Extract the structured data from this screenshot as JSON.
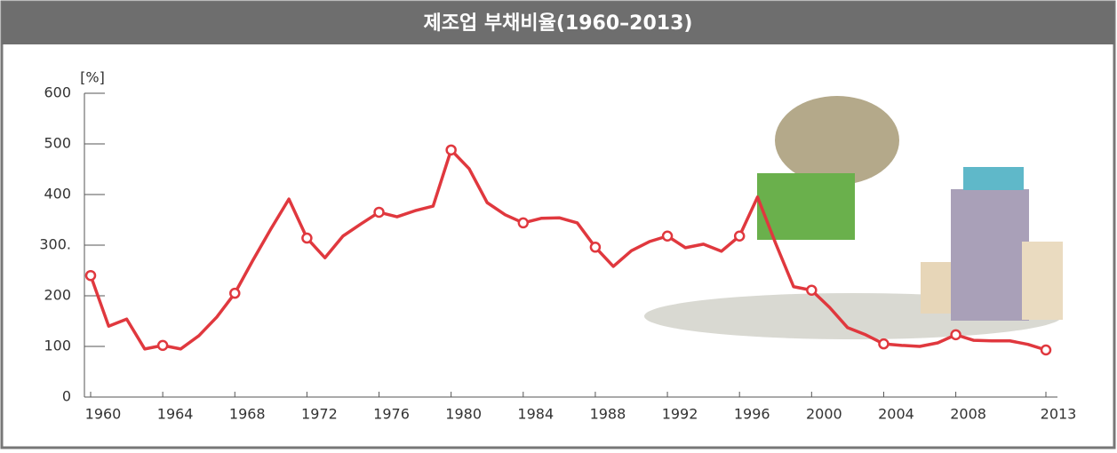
{
  "chart_data": {
    "type": "line",
    "title": "제조업 부채비율(1960–2013)",
    "y_unit": "[%]",
    "x": [
      1960,
      1961,
      1962,
      1963,
      1964,
      1965,
      1966,
      1967,
      1968,
      1969,
      1970,
      1971,
      1972,
      1973,
      1974,
      1975,
      1976,
      1977,
      1978,
      1979,
      1980,
      1981,
      1982,
      1983,
      1984,
      1985,
      1986,
      1987,
      1988,
      1989,
      1990,
      1991,
      1992,
      1993,
      1994,
      1995,
      1996,
      1997,
      1998,
      1999,
      2000,
      2001,
      2002,
      2003,
      2004,
      2005,
      2006,
      2007,
      2008,
      2009,
      2010,
      2011,
      2012,
      2013
    ],
    "values": [
      240,
      140,
      154,
      95,
      102,
      95,
      121,
      158,
      205,
      270,
      332,
      391,
      314,
      275,
      318,
      342,
      365,
      356,
      368,
      377,
      488,
      451,
      384,
      360,
      344,
      353,
      354,
      344,
      296,
      258,
      289,
      307,
      318,
      295,
      302,
      288,
      318,
      395,
      304,
      218,
      211,
      177,
      137,
      123,
      105,
      102,
      100,
      107,
      123,
      112,
      111,
      111,
      104,
      93
    ],
    "color": "#e0383e",
    "xlim": [
      1960,
      2013
    ],
    "xticks": [
      1960,
      1964,
      1968,
      1972,
      1976,
      1980,
      1984,
      1988,
      1992,
      1996,
      2000,
      2004,
      2008,
      2013
    ],
    "ylim": [
      0,
      600
    ],
    "yticks": [
      0,
      100,
      200,
      {
        "value": 300,
        "label": "300."
      },
      400,
      500,
      600
    ]
  }
}
